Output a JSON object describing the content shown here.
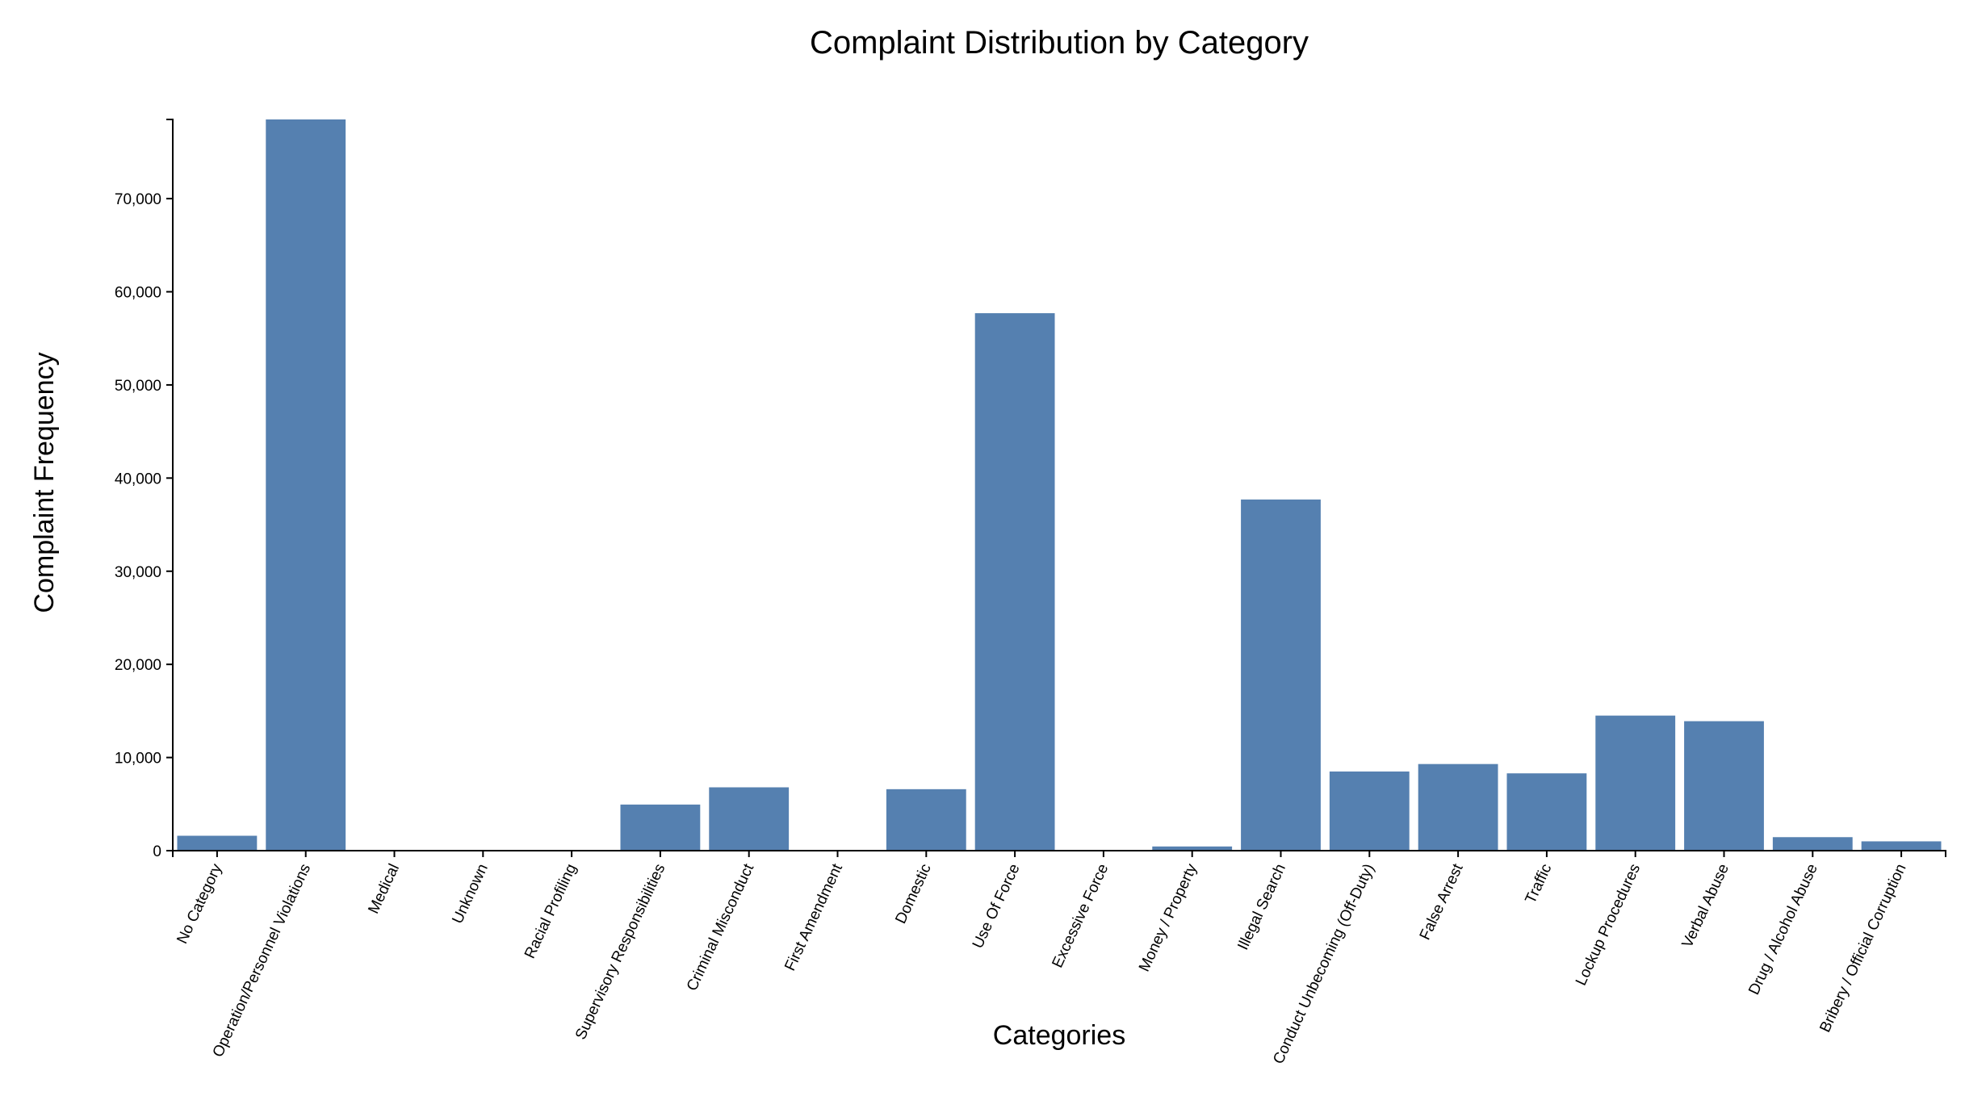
{
  "chart_data": {
    "type": "bar",
    "title": "Complaint Distribution by Category",
    "xlabel": "Categories",
    "ylabel": "Complaint Frequency",
    "categories": [
      "No Category",
      "Operation/Personnel Violations",
      "Medical",
      "Unknown",
      "Racial Profiling",
      "Supervisory Responsibilities",
      "Criminal Misconduct",
      "First Amendment",
      "Domestic",
      "Use Of Force",
      "Excessive Force",
      "Money / Property",
      "Illegal Search",
      "Conduct Unbecoming (Off-Duty)",
      "False Arrest",
      "Traffic",
      "Lockup Procedures",
      "Verbal Abuse",
      "Drug / Alcohol Abuse",
      "Bribery / Official Corruption"
    ],
    "values": [
      1600,
      78500,
      60,
      60,
      60,
      4950,
      6800,
      60,
      6600,
      57700,
      60,
      450,
      37700,
      8500,
      9300,
      8300,
      14500,
      13900,
      1450,
      1000
    ],
    "ylim": [
      0,
      78500
    ],
    "yticks": [
      0,
      10000,
      20000,
      30000,
      40000,
      50000,
      60000,
      70000
    ],
    "ytick_labels": [
      "0",
      "10,000",
      "20,000",
      "30,000",
      "40,000",
      "50,000",
      "60,000",
      "70,000"
    ],
    "grid": false,
    "legend": "none",
    "bar_color": "#5580b0"
  }
}
